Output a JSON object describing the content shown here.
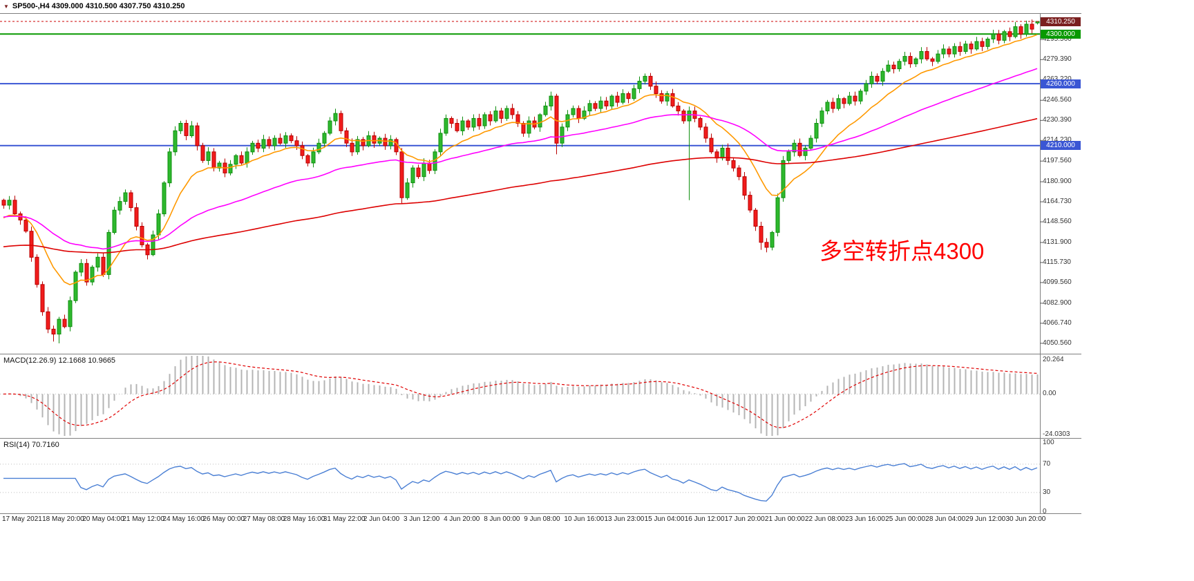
{
  "header": {
    "symbol_info": "SP500-,H4  4309.000 4310.500 4307.750 4310.250"
  },
  "annotation": {
    "text": "多空转折点4300",
    "color": "#ff0000"
  },
  "chart_data": {
    "type": "candlestick",
    "symbol": "SP500-",
    "timeframe": "H4",
    "current_bar": {
      "open": 4309.0,
      "high": 4310.5,
      "low": 4307.75,
      "close": 4310.25
    },
    "ylim": [
      4042,
      4328
    ],
    "candle_colors": {
      "up_fill": "#2eb82e",
      "up_stroke": "#0f8f0f",
      "down_fill": "#f11c1c",
      "down_stroke": "#b80000"
    },
    "closes": [
      4162,
      4166,
      4155,
      4150,
      4141,
      4120,
      4098,
      4076,
      4062,
      4058,
      4070,
      4064,
      4085,
      4108,
      4115,
      4100,
      4112,
      4120,
      4106,
      4140,
      4158,
      4165,
      4172,
      4160,
      4145,
      4130,
      4122,
      4138,
      4155,
      4180,
      4205,
      4222,
      4228,
      4218,
      4226,
      4210,
      4198,
      4205,
      4192,
      4196,
      4188,
      4195,
      4202,
      4196,
      4205,
      4212,
      4208,
      4215,
      4210,
      4216,
      4212,
      4218,
      4214,
      4210,
      4202,
      4196,
      4205,
      4212,
      4220,
      4230,
      4236,
      4222,
      4212,
      4205,
      4215,
      4210,
      4218,
      4212,
      4216,
      4210,
      4215,
      4205,
      4168,
      4180,
      4192,
      4185,
      4196,
      4190,
      4205,
      4220,
      4232,
      4228,
      4222,
      4230,
      4225,
      4232,
      4226,
      4235,
      4230,
      4238,
      4232,
      4240,
      4235,
      4228,
      4220,
      4230,
      4225,
      4235,
      4242,
      4250,
      4212,
      4225,
      4235,
      4240,
      4232,
      4238,
      4244,
      4240,
      4246,
      4242,
      4250,
      4245,
      4252,
      4248,
      4256,
      4262,
      4266,
      4258,
      4252,
      4246,
      4252,
      4242,
      4238,
      4230,
      4238,
      4232,
      4225,
      4216,
      4205,
      4200,
      4208,
      4198,
      4192,
      4185,
      4170,
      4158,
      4145,
      4132,
      4128,
      4140,
      4168,
      4198,
      4205,
      4212,
      4202,
      4208,
      4216,
      4228,
      4238,
      4245,
      4240,
      4248,
      4244,
      4250,
      4246,
      4254,
      4260,
      4266,
      4262,
      4270,
      4275,
      4272,
      4278,
      4282,
      4276,
      4280,
      4286,
      4280,
      4278,
      4284,
      4288,
      4284,
      4290,
      4286,
      4292,
      4288,
      4294,
      4290,
      4296,
      4300,
      4295,
      4302,
      4298,
      4306,
      4300,
      4308,
      4304,
      4310.25
    ],
    "overrides": {
      "9": {
        "low": 4052
      },
      "10": {
        "low": 4050.5
      },
      "72": {
        "low": 4163
      },
      "100": {
        "low": 4203
      },
      "124": {
        "low": 4166
      },
      "137": {
        "low": 4126
      },
      "138": {
        "low": 4124
      },
      "187": {
        "open": 4309.0,
        "high": 4310.5,
        "low": 4307.75
      }
    },
    "moving_averages": [
      {
        "name": "ma-fast-orange",
        "color": "#ff9900",
        "period": 13,
        "seed": 4150
      },
      {
        "name": "ma-medium-magenta",
        "color": "#ff00ff",
        "period": 48,
        "seed": 4152
      },
      {
        "name": "ma-slow-red",
        "color": "#dd0000",
        "period": 150,
        "seed": 4128
      }
    ],
    "horizontal_levels": [
      {
        "label": "4310.250",
        "price": 4310.25,
        "color": "#7a1f1f",
        "type": "bid"
      },
      {
        "label": "4300.000",
        "price": 4300,
        "color": "#089900",
        "type": "line"
      },
      {
        "label": "4260.000",
        "price": 4260,
        "color": "#3a56d4",
        "type": "line"
      },
      {
        "label": "4210.000",
        "price": 4210,
        "color": "#3a56d4",
        "type": "line"
      }
    ],
    "price_axis_labels": [
      "4295.560",
      "4279.390",
      "4263.220",
      "4246.560",
      "4230.390",
      "4214.230",
      "4197.560",
      "4180.900",
      "4164.730",
      "4148.560",
      "4131.900",
      "4115.730",
      "4099.560",
      "4082.900",
      "4066.740",
      "4050.560"
    ],
    "time_axis_labels": [
      "17 May 2021",
      "18 May 20:00",
      "20 May 04:00",
      "21 May 12:00",
      "24 May 16:00",
      "26 May 00:00",
      "27 May 08:00",
      "28 May 16:00",
      "31 May 22:00",
      "2 Jun 04:00",
      "3 Jun 12:00",
      "4 Jun 20:00",
      "8 Jun 00:00",
      "9 Jun 08:00",
      "10 Jun 16:00",
      "13 Jun 23:00",
      "15 Jun 04:00",
      "16 Jun 12:00",
      "17 Jun 20:00",
      "21 Jun 00:00",
      "22 Jun 08:00",
      "23 Jun 16:00",
      "25 Jun 00:00",
      "28 Jun 04:00",
      "29 Jun 12:00",
      "30 Jun 20:00"
    ],
    "macd": {
      "label": "MACD(12.26.9) 12.1668 10.9665",
      "params": [
        12,
        26,
        9
      ],
      "value": 12.1668,
      "signal_value": 10.9665,
      "axis_labels": [
        "20.264",
        "0.00",
        "-24.0303"
      ],
      "axis_values": [
        20.264,
        0,
        -24.0303
      ],
      "histogram_color": "#b4b4b4",
      "signal_color": "#e00000"
    },
    "rsi": {
      "label": "RSI(14) 70.7160",
      "period": 14,
      "value": 70.716,
      "axis_labels": [
        "100",
        "70",
        "30",
        "0"
      ],
      "axis_values": [
        100,
        70,
        30,
        0
      ],
      "levels": [
        70,
        30
      ],
      "line_color": "#4a7fd4"
    }
  }
}
